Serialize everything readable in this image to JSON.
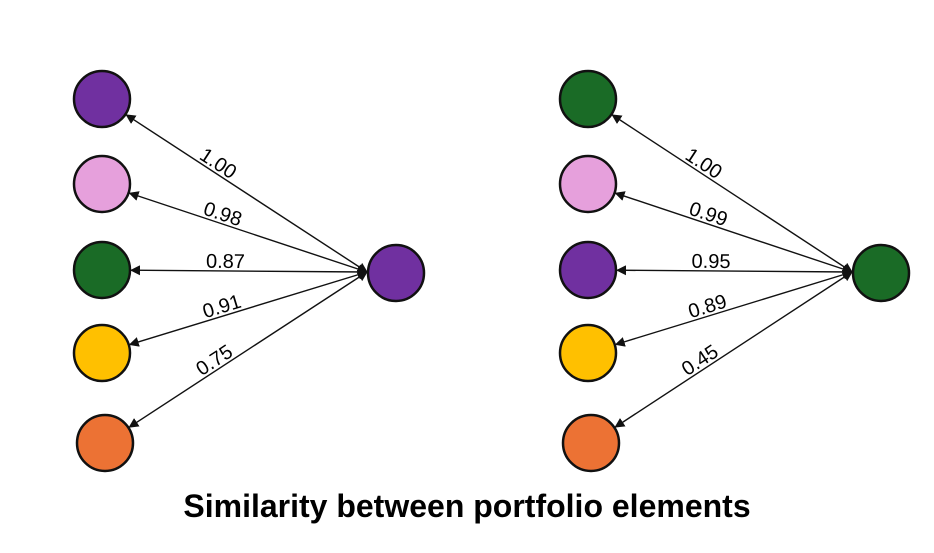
{
  "caption": "Similarity between portfolio elements",
  "colors": {
    "purple": "#7030a0",
    "pink": "#e6a0dc",
    "green": "#1a6b26",
    "yellow": "#ffc000",
    "orange": "#ec7234",
    "stroke": "#111111"
  },
  "diagrams": [
    {
      "center": {
        "color": "purple"
      },
      "targets": [
        {
          "color": "purple",
          "weight": "1.00"
        },
        {
          "color": "pink",
          "weight": "0.98"
        },
        {
          "color": "green",
          "weight": "0.87"
        },
        {
          "color": "yellow",
          "weight": "0.91"
        },
        {
          "color": "orange",
          "weight": "0.75"
        }
      ]
    },
    {
      "center": {
        "color": "green"
      },
      "targets": [
        {
          "color": "green",
          "weight": "1.00"
        },
        {
          "color": "pink",
          "weight": "0.99"
        },
        {
          "color": "purple",
          "weight": "0.95"
        },
        {
          "color": "yellow",
          "weight": "0.89"
        },
        {
          "color": "orange",
          "weight": "0.45"
        }
      ]
    }
  ]
}
